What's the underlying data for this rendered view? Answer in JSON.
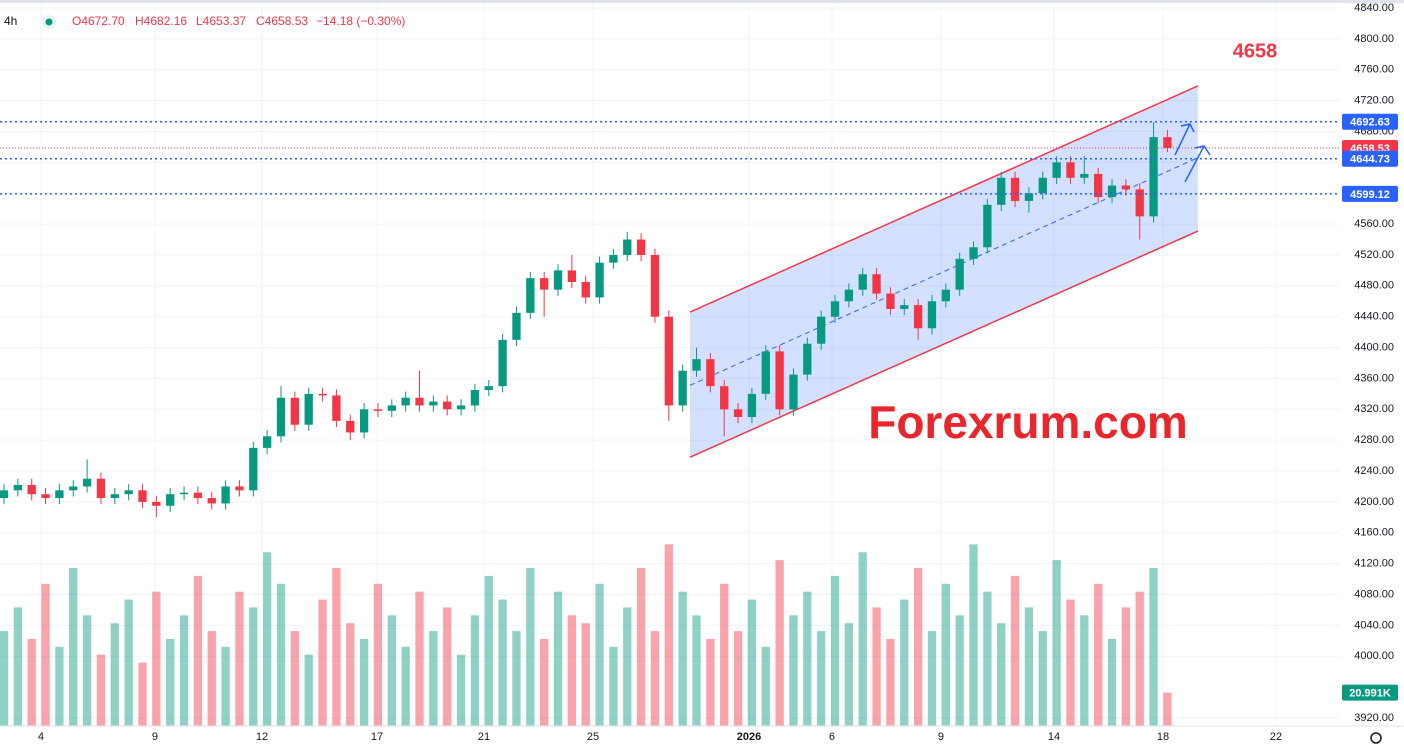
{
  "chart_data": {
    "type": "candlestick",
    "header": {
      "interval": "4h",
      "open": "O4672.70",
      "high": "H4682.16",
      "low": "L4653.37",
      "close": "C4658.53",
      "change": "−14.18 (−0.30%)"
    },
    "annotation": "4658",
    "watermark": "Forexrum.com",
    "up_color": "#089981",
    "down_color": "#f23645",
    "grid": true,
    "xlim": [
      -0.289,
      96.46
    ],
    "xticks": [
      {
        "value": 2.67,
        "label": "4"
      },
      {
        "value": 10.9,
        "label": "9"
      },
      {
        "value": 18.63,
        "label": "12"
      },
      {
        "value": 26.93,
        "label": "17"
      },
      {
        "value": 34.66,
        "label": "21"
      },
      {
        "value": 42.53,
        "label": "25"
      },
      {
        "value": 53.79,
        "label": "2026"
      },
      {
        "value": 59.78,
        "label": "6"
      },
      {
        "value": 67.65,
        "label": "9"
      },
      {
        "value": 75.81,
        "label": "14"
      },
      {
        "value": 83.68,
        "label": "18"
      },
      {
        "value": 91.84,
        "label": "22"
      }
    ],
    "ylim": [
      3910,
      4850
    ],
    "yticks": [
      {
        "value": 3920,
        "label": "3920.00"
      },
      {
        "value": 4000,
        "label": "4000.00"
      },
      {
        "value": 4040,
        "label": "4040.00"
      },
      {
        "value": 4080,
        "label": "4080.00"
      },
      {
        "value": 4120,
        "label": "4120.00"
      },
      {
        "value": 4160,
        "label": "4160.00"
      },
      {
        "value": 4200,
        "label": "4200.00"
      },
      {
        "value": 4240,
        "label": "4240.00"
      },
      {
        "value": 4280,
        "label": "4280.00"
      },
      {
        "value": 4320,
        "label": "4320.00"
      },
      {
        "value": 4360,
        "label": "4360.00"
      },
      {
        "value": 4400,
        "label": "4400.00"
      },
      {
        "value": 4440,
        "label": "4440.00"
      },
      {
        "value": 4480,
        "label": "4480.00"
      },
      {
        "value": 4520,
        "label": "4520.00"
      },
      {
        "value": 4560,
        "label": "4560.00"
      },
      {
        "value": 4600,
        "label": "4600.00"
      },
      {
        "value": 4640,
        "label": "4640.00"
      },
      {
        "value": 4680,
        "label": "4680.00"
      },
      {
        "value": 4720,
        "label": "4720.00"
      },
      {
        "value": 4760,
        "label": "4760.00"
      },
      {
        "value": 4800,
        "label": "4800.00"
      },
      {
        "value": 4840,
        "label": "4840.00"
      }
    ],
    "y2lim": [
      0,
      460
    ],
    "open": [
      4205,
      4215,
      4222,
      4210,
      4205,
      4215,
      4220,
      4230,
      4205,
      4210,
      4215,
      4200,
      4195,
      4210,
      4212,
      4205,
      4198,
      4220,
      4215,
      4270,
      4285,
      4335,
      4300,
      4340,
      4338,
      4305,
      4290,
      4320,
      4318,
      4325,
      4335,
      4325,
      4330,
      4320,
      4325,
      4345,
      4350,
      4410,
      4445,
      4490,
      4475,
      4500,
      4485,
      4465,
      4510,
      4520,
      4540,
      4520,
      4440,
      4325,
      4370,
      4385,
      4350,
      4320,
      4310,
      4340,
      4395,
      4320,
      4365,
      4405,
      4440,
      4460,
      4475,
      4495,
      4470,
      4450,
      4455,
      4425,
      4460,
      4475,
      4515,
      4530,
      4585,
      4620,
      4590,
      4600,
      4620,
      4640,
      4620,
      4625,
      4595,
      4610,
      4605,
      4570,
      4672.7
    ],
    "high": [
      4223,
      4230,
      4230,
      4218,
      4223,
      4228,
      4255,
      4238,
      4218,
      4223,
      4223,
      4208,
      4218,
      4220,
      4220,
      4213,
      4228,
      4228,
      4278,
      4293,
      4350,
      4343,
      4348,
      4348,
      4346,
      4313,
      4328,
      4328,
      4333,
      4343,
      4370,
      4338,
      4338,
      4333,
      4353,
      4358,
      4418,
      4453,
      4498,
      4498,
      4508,
      4520,
      4493,
      4518,
      4528,
      4550,
      4548,
      4528,
      4448,
      4378,
      4400,
      4393,
      4358,
      4328,
      4348,
      4403,
      4403,
      4373,
      4413,
      4448,
      4468,
      4483,
      4503,
      4503,
      4478,
      4463,
      4463,
      4468,
      4483,
      4523,
      4538,
      4593,
      4628,
      4628,
      4608,
      4628,
      4648,
      4648,
      4648,
      4633,
      4618,
      4618,
      4613,
      4692,
      4682.16
    ],
    "low": [
      4197,
      4207,
      4202,
      4197,
      4197,
      4207,
      4212,
      4197,
      4197,
      4202,
      4192,
      4180,
      4187,
      4202,
      4197,
      4190,
      4190,
      4207,
      4207,
      4262,
      4277,
      4292,
      4292,
      4330,
      4297,
      4280,
      4282,
      4310,
      4310,
      4317,
      4317,
      4317,
      4312,
      4312,
      4317,
      4337,
      4342,
      4402,
      4437,
      4440,
      4467,
      4477,
      4457,
      4457,
      4502,
      4512,
      4512,
      4432,
      4305,
      4317,
      4362,
      4342,
      4285,
      4302,
      4302,
      4332,
      4312,
      4312,
      4357,
      4397,
      4432,
      4452,
      4467,
      4462,
      4442,
      4442,
      4410,
      4417,
      4452,
      4467,
      4507,
      4522,
      4577,
      4582,
      4575,
      4592,
      4612,
      4612,
      4612,
      4587,
      4587,
      4597,
      4540,
      4562,
      4653.37
    ],
    "close": [
      4215,
      4222,
      4210,
      4205,
      4215,
      4220,
      4230,
      4205,
      4210,
      4215,
      4200,
      4195,
      4210,
      4212,
      4205,
      4198,
      4220,
      4215,
      4270,
      4285,
      4335,
      4300,
      4340,
      4338,
      4305,
      4290,
      4320,
      4318,
      4325,
      4335,
      4325,
      4330,
      4320,
      4325,
      4345,
      4350,
      4410,
      4445,
      4490,
      4475,
      4500,
      4485,
      4465,
      4510,
      4520,
      4540,
      4520,
      4440,
      4325,
      4370,
      4385,
      4350,
      4320,
      4310,
      4340,
      4395,
      4320,
      4365,
      4405,
      4440,
      4460,
      4475,
      4495,
      4470,
      4450,
      4455,
      4425,
      4460,
      4475,
      4515,
      4530,
      4585,
      4620,
      4590,
      4600,
      4620,
      4640,
      4620,
      4625,
      4595,
      4610,
      4605,
      4570,
      4672.7,
      4658.53
    ],
    "volumes": [
      60,
      75,
      55,
      90,
      50,
      100,
      70,
      45,
      65,
      80,
      40,
      85,
      55,
      70,
      95,
      60,
      50,
      85,
      75,
      110,
      90,
      60,
      45,
      80,
      100,
      65,
      55,
      90,
      70,
      50,
      85,
      60,
      75,
      45,
      70,
      95,
      80,
      60,
      100,
      55,
      85,
      70,
      65,
      90,
      50,
      75,
      100,
      60,
      115,
      85,
      70,
      55,
      90,
      60,
      80,
      50,
      105,
      70,
      85,
      60,
      95,
      65,
      110,
      75,
      55,
      80,
      100,
      60,
      90,
      70,
      115,
      85,
      65,
      95,
      75,
      60,
      105,
      80,
      70,
      90,
      55,
      75,
      85,
      100,
      20.991
    ],
    "volume_label": {
      "value": 20.991,
      "label": "20.991K"
    },
    "levels": [
      {
        "value": 4692.63,
        "color": "#2962ff"
      },
      {
        "value": 4658.53,
        "color": "#f23645"
      },
      {
        "value": 4644.73,
        "color": "#2962ff"
      },
      {
        "value": 4599.12,
        "color": "#2962ff"
      }
    ],
    "channel": {
      "x": [
        49.53,
        86.2
      ],
      "upper": [
        4446,
        4739
      ],
      "middle": [
        4351,
        4646
      ],
      "lower": [
        4258,
        4551
      ],
      "color": "#f23645"
    }
  }
}
